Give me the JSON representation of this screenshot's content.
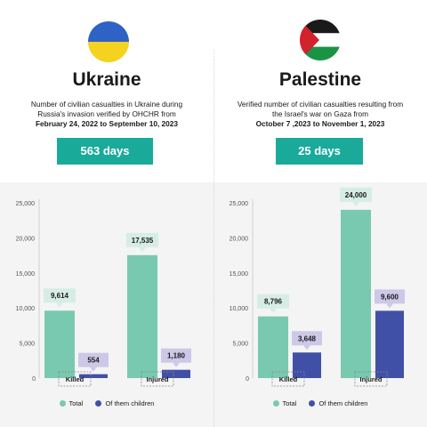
{
  "colors": {
    "total": "#79c9b0",
    "children": "#4150a7",
    "days_bg": "#1aaa9a",
    "total_label_bg": "#d6ede6",
    "children_label_bg": "#cdc8e8"
  },
  "legend": {
    "total": "Total",
    "children": "Of them children"
  },
  "panels": [
    {
      "country": "Ukraine",
      "flag_icon": "ukraine-flag-icon",
      "desc_line1": "Number of civilian casualties in Ukraine during",
      "desc_line2": "Russia's invasion verified by OHCHR from",
      "dates": "February 24, 2022 to September 10, 2023",
      "days": "563 days"
    },
    {
      "country": "Palestine",
      "flag_icon": "palestine-flag-icon",
      "desc_line1": "Verified number of civilian casualties resulting from",
      "desc_line2": "the Israel's war on Gaza from",
      "dates": "October 7 ,2023 to November 1, 2023",
      "days": "25 days"
    }
  ],
  "chart_data": [
    {
      "type": "bar",
      "categories": [
        "Killed",
        "Injured"
      ],
      "series": [
        {
          "name": "Total",
          "values": [
            9614,
            17535
          ],
          "labels": [
            "9,614",
            "17,535"
          ]
        },
        {
          "name": "Of them children",
          "values": [
            554,
            1180
          ],
          "labels": [
            "554",
            "1,180"
          ]
        }
      ],
      "y_ticks": [
        "0",
        "5,000",
        "10,000",
        "15,000",
        "20,000",
        "25,000"
      ],
      "ylim": [
        0,
        25000
      ]
    },
    {
      "type": "bar",
      "categories": [
        "Killed",
        "Injured"
      ],
      "series": [
        {
          "name": "Total",
          "values": [
            8796,
            24000
          ],
          "labels": [
            "8,796",
            "24,000"
          ]
        },
        {
          "name": "Of them children",
          "values": [
            3648,
            9600
          ],
          "labels": [
            "3,648",
            "9,600"
          ]
        }
      ],
      "y_ticks": [
        "0",
        "5,000",
        "10,000",
        "15,000",
        "20,000",
        "25,000"
      ],
      "ylim": [
        0,
        25000
      ]
    }
  ]
}
